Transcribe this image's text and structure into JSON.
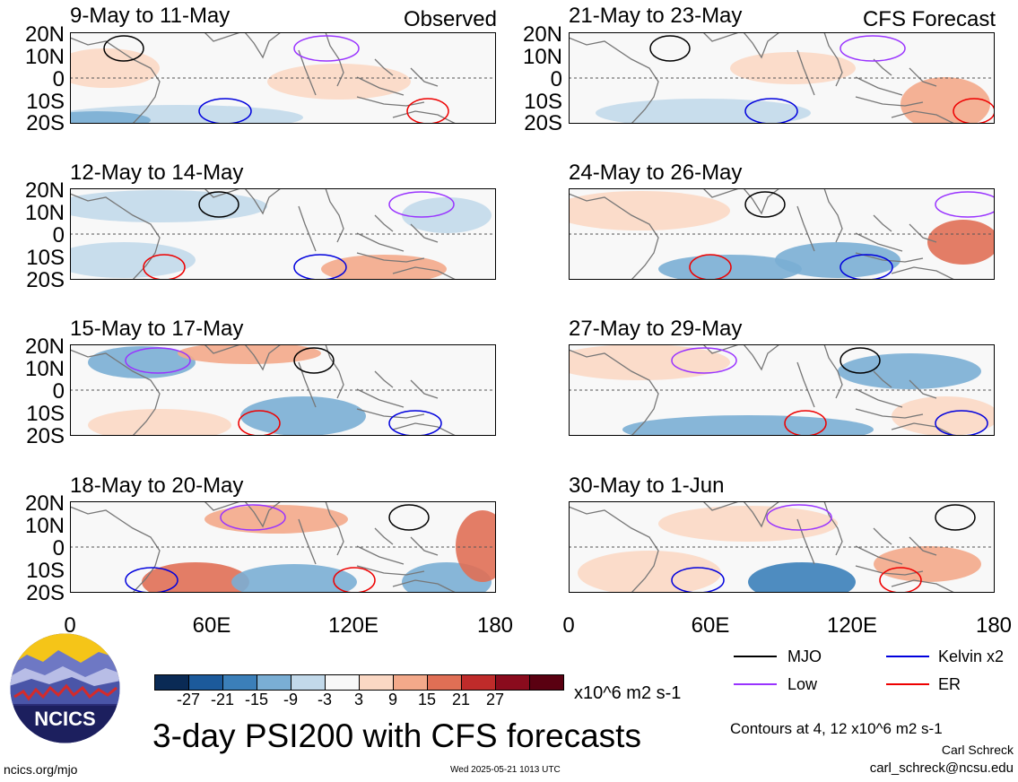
{
  "panels": [
    {
      "title": "9-May to 11-May",
      "tag": "Observed"
    },
    {
      "title": "21-May to 23-May",
      "tag": "CFS Forecast"
    },
    {
      "title": "12-May to 14-May",
      "tag": ""
    },
    {
      "title": "24-May to 26-May",
      "tag": ""
    },
    {
      "title": "15-May to 17-May",
      "tag": ""
    },
    {
      "title": "27-May to 29-May",
      "tag": ""
    },
    {
      "title": "18-May to 20-May",
      "tag": ""
    },
    {
      "title": "30-May to 1-Jun",
      "tag": ""
    }
  ],
  "lat_labels": [
    "20N",
    "10N",
    "0",
    "10S",
    "20S"
  ],
  "lon_labels": [
    "0",
    "60E",
    "120E",
    "180"
  ],
  "colorbar": {
    "colors": [
      "#0a2a55",
      "#1c5a9b",
      "#3b7fb9",
      "#7aaed4",
      "#c2d9ea",
      "#f8f8f8",
      "#fbd8c4",
      "#f3a98a",
      "#e06f55",
      "#bf2b2a",
      "#8a0b1d",
      "#5a0011"
    ],
    "tick_labels": [
      "-27",
      "-21",
      "-15",
      "-9",
      "-3",
      "3",
      "9",
      "15",
      "21",
      "27"
    ],
    "units": "x10^6 m2 s-1"
  },
  "legend": [
    {
      "label": "MJO",
      "color": "#000000"
    },
    {
      "label": "Kelvin x2",
      "color": "#0000dd"
    },
    {
      "label": "Low",
      "color": "#9933ff"
    },
    {
      "label": "ER",
      "color": "#ee0000"
    }
  ],
  "logo_text": "NCICS",
  "main_title": "3-day PSI200 with CFS forecasts",
  "contours_note": "Contours at 4, 12 x10^6 m2 s-1",
  "author": "Carl Schreck",
  "email": "carl_schreck@ncsu.edu",
  "site": "ncics.org/mjo",
  "timestamp": "Wed 2025-05-21 1013 UTC"
}
